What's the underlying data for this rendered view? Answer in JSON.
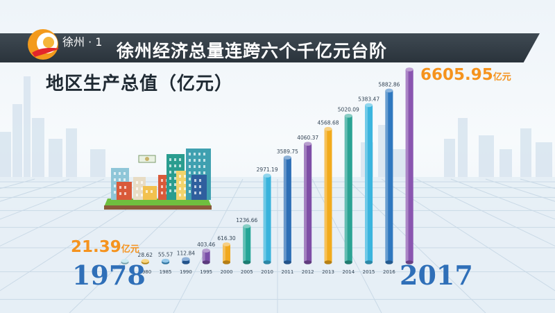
{
  "channel": {
    "name": "徐州 · 1",
    "logo_icon": "station-logo-icon"
  },
  "headline": "徐州经济总量连跨六个千亿元台阶",
  "chart_data": {
    "type": "bar",
    "title": "地区生产总值（亿元）",
    "categories": [
      "1978",
      "1980",
      "1985",
      "1990",
      "1995",
      "2000",
      "2005",
      "2010",
      "2011",
      "2012",
      "2013",
      "2014",
      "2015",
      "2016",
      "2017"
    ],
    "values": [
      21.39,
      28.62,
      55.57,
      112.84,
      403.46,
      616.3,
      1236.66,
      2971.19,
      3589.75,
      4060.37,
      4568.68,
      5020.09,
      5383.47,
      5882.86,
      6605.95
    ],
    "value_labels": [
      "",
      "28.62",
      "55.57",
      "112.84",
      "403.46",
      "616.30",
      "1236.66",
      "2971.19",
      "3589.75",
      "4060.37",
      "4568.68",
      "5020.09",
      "5383.47",
      "5882.86",
      ""
    ],
    "tick_labels": [
      "",
      "1980",
      "1985",
      "1990",
      "1995",
      "2000",
      "2005",
      "2010",
      "2011",
      "2012",
      "2013",
      "2014",
      "2015",
      "2016",
      ""
    ],
    "colors": [
      "#9fd8e6",
      "#f0b21e",
      "#3f9ad6",
      "#2f6fb8",
      "#7a4fa8",
      "#f0a81e",
      "#25a596",
      "#39b3dc",
      "#2d6fb6",
      "#7e4ea6",
      "#f2ab1c",
      "#2ba394",
      "#3bb5de",
      "#2f78bf",
      "#8a55b0"
    ],
    "first_label": {
      "year": "1978",
      "value": "21.39",
      "unit": "亿元"
    },
    "last_label": {
      "year": "2017",
      "value": "6605.95",
      "unit": "亿元"
    },
    "ylim": [
      0,
      6700
    ],
    "grid": false,
    "legend": "none"
  }
}
